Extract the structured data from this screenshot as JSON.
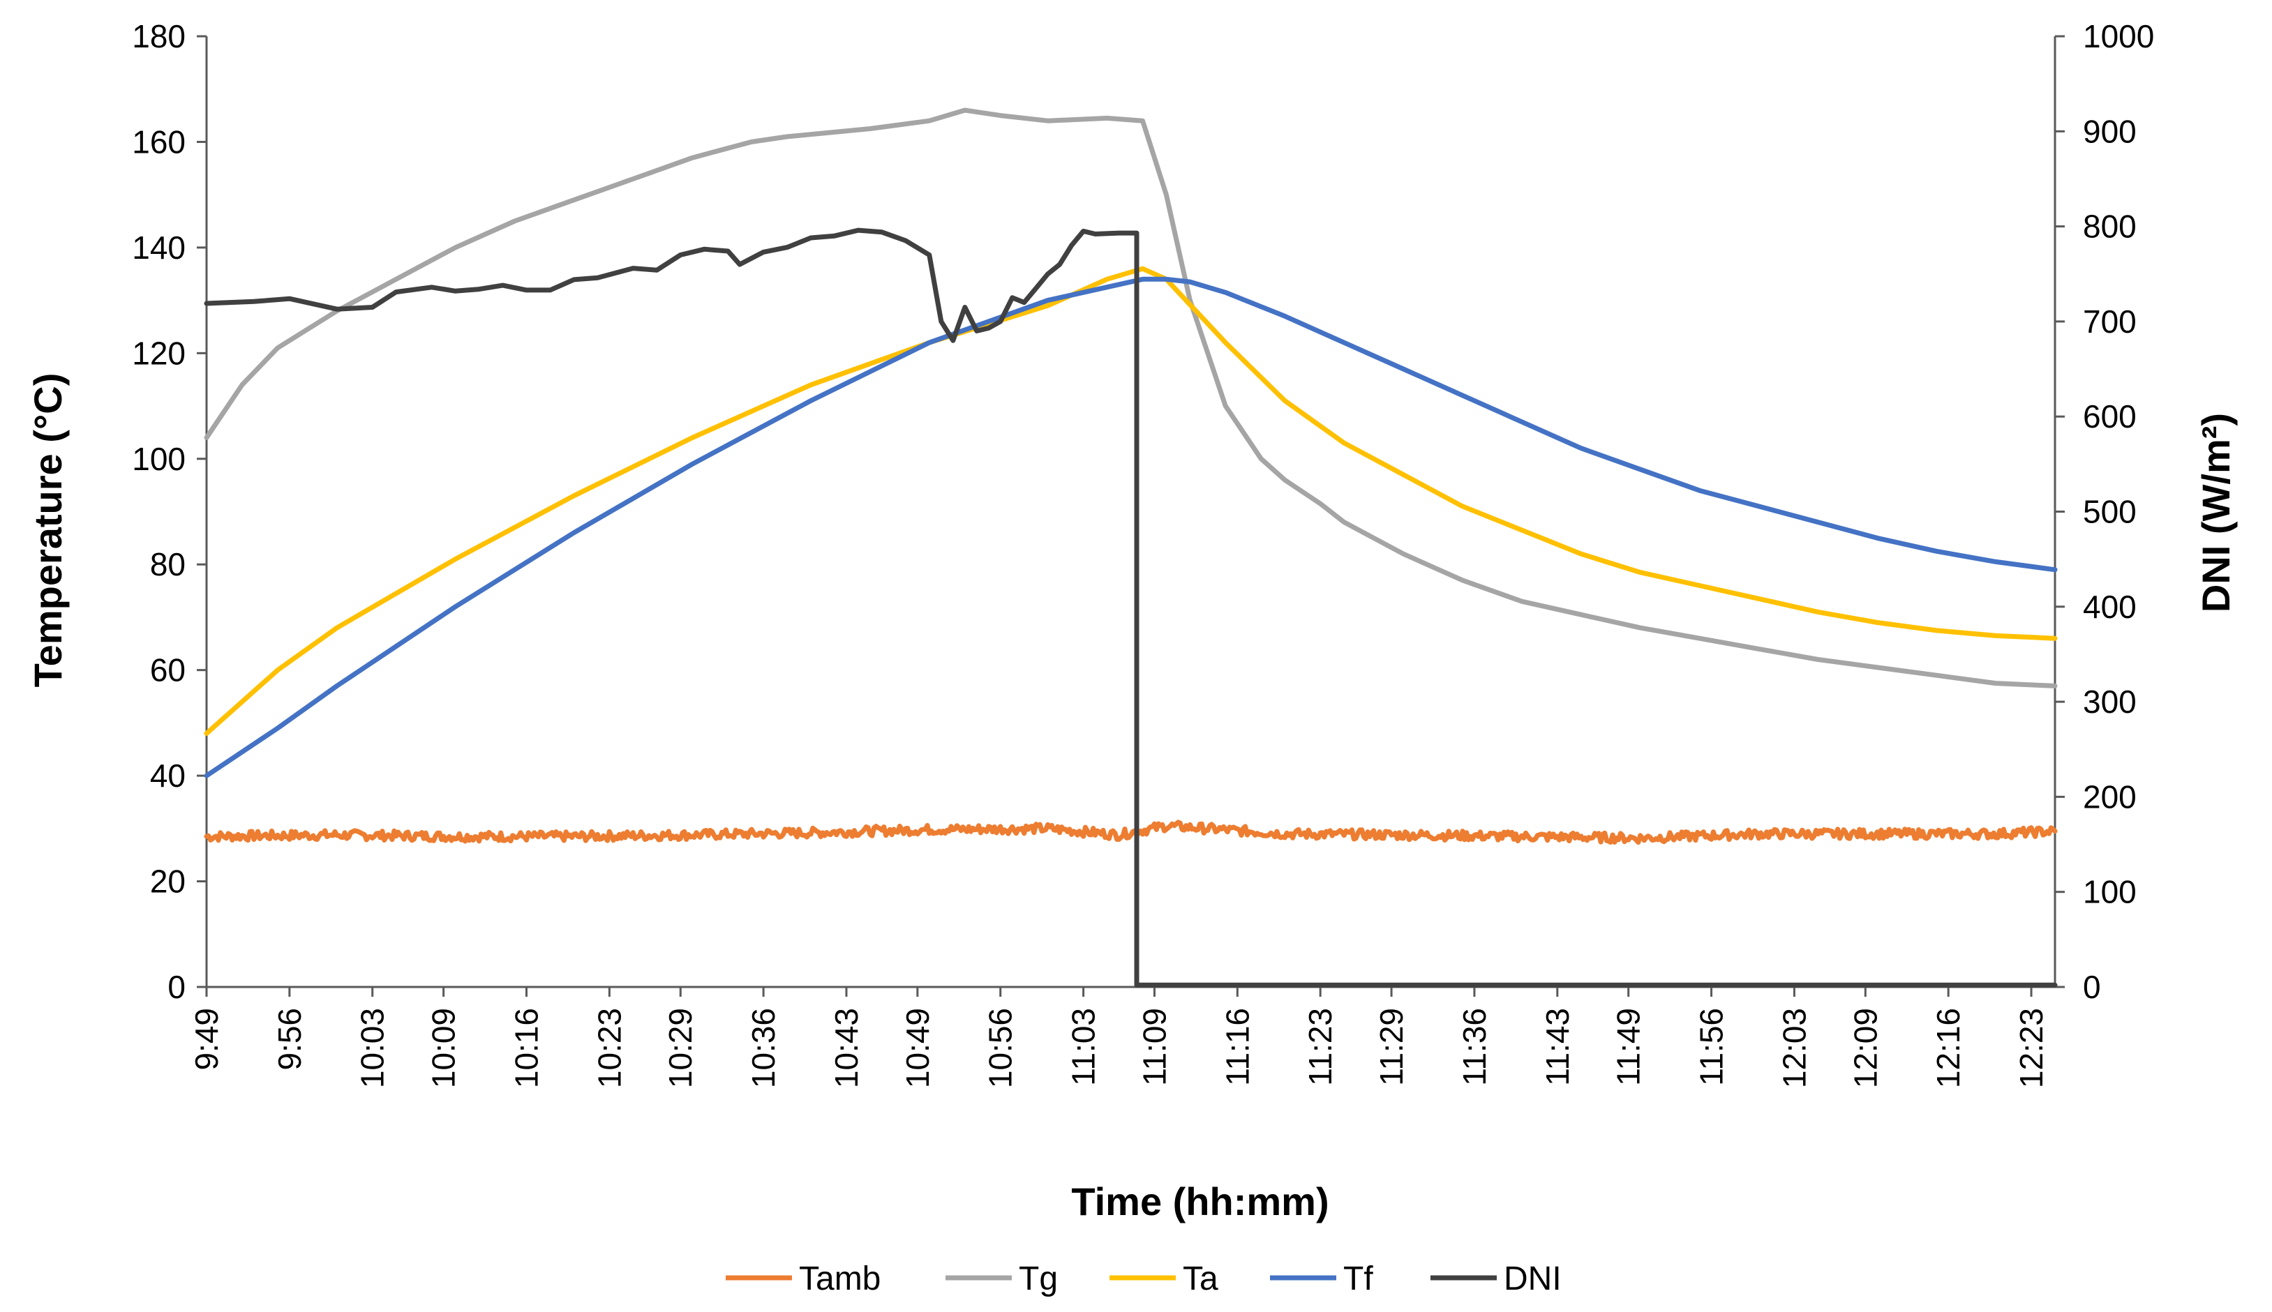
{
  "chart_data": {
    "type": "line",
    "title": "",
    "xlabel": "Time (hh:mm)",
    "ylabel": "Temperature (°C)",
    "y2label": "DNI (W/m²)",
    "x_range_minutes": [
      589,
      745
    ],
    "ylim": [
      0,
      180
    ],
    "y2lim": [
      0,
      1000
    ],
    "y_ticks": [
      0,
      20,
      40,
      60,
      80,
      100,
      120,
      140,
      160,
      180
    ],
    "y2_ticks": [
      0,
      100,
      200,
      300,
      400,
      500,
      600,
      700,
      800,
      900,
      1000
    ],
    "x_tick_minutes": [
      589,
      596,
      603,
      609,
      616,
      623,
      629,
      636,
      643,
      649,
      656,
      663,
      669,
      676,
      683,
      689,
      696,
      703,
      709,
      716,
      723,
      729,
      736,
      743
    ],
    "x_tick_labels": [
      "9:49",
      "9:56",
      "10:03",
      "10:09",
      "10:16",
      "10:23",
      "10:29",
      "10:36",
      "10:43",
      "10:49",
      "10:56",
      "11:03",
      "11:09",
      "11:16",
      "11:23",
      "11:29",
      "11:36",
      "11:43",
      "11:49",
      "11:56",
      "12:03",
      "12:09",
      "12:16",
      "12:23"
    ],
    "legend_position": "bottom",
    "series": [
      {
        "name": "Tamb",
        "color": "#ED7D31",
        "axis": "left",
        "noise": 0.9,
        "x": [
          589,
          600,
          610,
          620,
          630,
          640,
          650,
          660,
          666,
          670,
          680,
          690,
          700,
          710,
          720,
          730,
          740,
          745
        ],
        "y": [
          28.5,
          28.8,
          28.5,
          28.5,
          28.8,
          29.2,
          29.8,
          30.0,
          28.8,
          30.5,
          29.0,
          28.8,
          28.5,
          28.2,
          29.0,
          29.0,
          29.0,
          29.5
        ]
      },
      {
        "name": "Tg",
        "color": "#A5A5A5",
        "axis": "left",
        "noise": 0,
        "x": [
          589,
          592,
          595,
          600,
          605,
          610,
          615,
          620,
          625,
          630,
          635,
          638,
          645,
          650,
          653,
          656,
          660,
          665,
          668,
          670,
          672,
          675,
          678,
          680,
          683,
          685,
          690,
          695,
          700,
          705,
          710,
          715,
          720,
          725,
          730,
          735,
          740,
          745
        ],
        "y": [
          104,
          114,
          121,
          128,
          134,
          140,
          145,
          149,
          153,
          157,
          160,
          161,
          162.5,
          164,
          166,
          165,
          164,
          164.5,
          164,
          150,
          130,
          110,
          100,
          96,
          91.5,
          88,
          82,
          77,
          73,
          70.5,
          68,
          66,
          64,
          62,
          60.5,
          59,
          57.5,
          57
        ]
      },
      {
        "name": "Ta",
        "color": "#FFC000",
        "axis": "left",
        "noise": 0,
        "x": [
          589,
          595,
          600,
          610,
          620,
          630,
          640,
          650,
          660,
          665,
          668,
          670,
          675,
          680,
          685,
          690,
          695,
          700,
          705,
          710,
          715,
          720,
          725,
          730,
          735,
          740,
          745
        ],
        "y": [
          48,
          60,
          68,
          81,
          93,
          104,
          114,
          122,
          129,
          134,
          136,
          134,
          122,
          111,
          103,
          97,
          91,
          86.5,
          82,
          78.5,
          76,
          73.5,
          71,
          69,
          67.5,
          66.5,
          66
        ]
      },
      {
        "name": "Tf",
        "color": "#4472C4",
        "axis": "left",
        "noise": 0,
        "x": [
          589,
          595,
          600,
          610,
          620,
          630,
          640,
          650,
          660,
          668,
          670,
          672,
          675,
          680,
          685,
          690,
          695,
          700,
          705,
          710,
          715,
          720,
          725,
          730,
          735,
          740,
          745
        ],
        "y": [
          40,
          49,
          57,
          72,
          86,
          99,
          111,
          122,
          130,
          134,
          134,
          133.5,
          131.5,
          127,
          122,
          117,
          112,
          107,
          102,
          98,
          94,
          91,
          88,
          85,
          82.5,
          80.5,
          79
        ]
      },
      {
        "name": "DNI",
        "color": "#404040",
        "axis": "right",
        "noise": 0,
        "x": [
          589,
          593,
          596,
          600,
          603,
          605,
          608,
          610,
          612,
          614,
          616,
          618,
          620,
          622,
          625,
          627,
          629,
          631,
          633,
          634,
          636,
          638,
          640,
          642,
          644,
          646,
          648,
          650,
          651,
          652,
          653,
          654,
          655,
          656,
          657,
          658,
          659,
          660,
          661,
          662,
          663,
          664,
          666,
          667.5,
          667.5,
          667.8,
          745
        ],
        "y": [
          719,
          721,
          724,
          713,
          715,
          731,
          736,
          732,
          734,
          738,
          733,
          733,
          744,
          746,
          756,
          754,
          770,
          776,
          774,
          760,
          773,
          778,
          788,
          790,
          796,
          794,
          785,
          770,
          700,
          680,
          715,
          690,
          693,
          700,
          725,
          720,
          735,
          750,
          760,
          780,
          795,
          792,
          793,
          793,
          2,
          2,
          2
        ]
      }
    ]
  }
}
